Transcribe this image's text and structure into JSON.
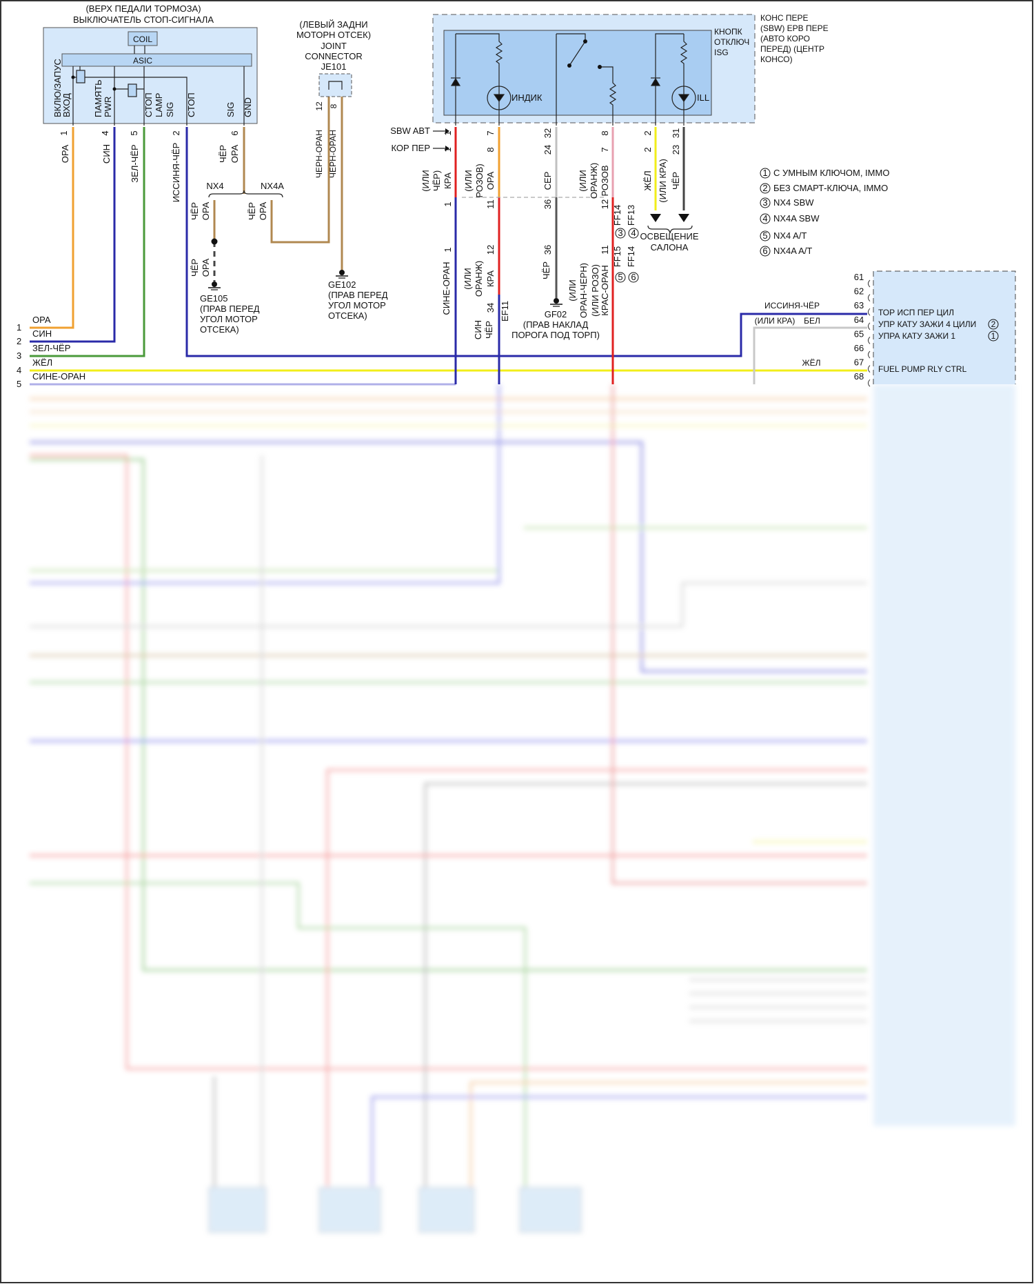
{
  "colors": {
    "ora": "#f0a030",
    "sin": "#2a2aa8",
    "zel": "#4a9a3a",
    "yel": "#f2ee1a",
    "red": "#e02020",
    "tan": "#b08850",
    "pink": "#e8a0b0",
    "gray": "#b0b0b0",
    "black": "#444444",
    "box": "#d6e8fa",
    "inner": "#a9cdf2"
  },
  "brake_switch": {
    "title": [
      "(ВЕРХ ПЕДАЛИ ТОРМОЗА)",
      "ВЫКЛЮЧАТЕЛЬ СТОП-СИГНАЛА"
    ],
    "coil": "COIL",
    "asic": "ASIC",
    "pin_labels": [
      "ВКЛЮ/ЗАПУС",
      "ВХОД",
      "ПАМЯТЬ",
      "PWR",
      "СТОП",
      "LAMP",
      "SIG",
      "СТОП",
      "SIG",
      "GND"
    ],
    "pin_numbers": [
      "1",
      "4",
      "5",
      "2",
      "6"
    ],
    "wires": [
      "ОРА",
      "СИН",
      "ЗЕЛ-ЧЁР",
      "ИССИНЯ-ЧЁР",
      "ЧЁР",
      "ОРА"
    ]
  },
  "joint": {
    "title": [
      "(ЛЕВЫЙ ЗАДНИ",
      "МОТОРН ОТСЕК)",
      "JOINT",
      "CONNECTOR",
      "JE101"
    ],
    "pins": [
      "12",
      "8"
    ],
    "wires": [
      "ЧЕРН-ОРАН",
      "ЧЕРН-ОРАН"
    ]
  },
  "nx": {
    "nx4": "NX4",
    "nx4a": "NX4A",
    "left_wire": [
      "ЧЁР",
      "ОРА"
    ],
    "right_wire": [
      "ЧЁР",
      "ОРА"
    ],
    "lower_wire": [
      "ЧЁР",
      "ОРА"
    ]
  },
  "grounds": {
    "ge105": [
      "GE105",
      "(ПРАВ ПЕРЕД",
      "УГОЛ МОТОР",
      "ОТСЕКА)"
    ],
    "ge102": [
      "GE102",
      "(ПРАВ ПЕРЕД",
      "УГОЛ МОТОР",
      "ОТСЕКА)"
    ],
    "gf02": [
      "GF02",
      "(ПРАВ НАКЛАД",
      "ПОРОГА ПОД ТОРП)"
    ]
  },
  "isg": {
    "indicator": "ИНДИК",
    "ill": "ILL",
    "button": [
      "КНОПК",
      "ОТКЛЮЧ",
      "ISG"
    ],
    "console": [
      "КОНС ПЕРЕ",
      "(SBW) EPB ПЕРЕ",
      "(АВТО КОРО",
      "ПЕРЕД) (ЦЕНТР",
      "КОНСО)"
    ],
    "sbw": "SBW ABT",
    "kor": "КОР ПЕР",
    "pins_top": [
      "1",
      "7",
      "32",
      "8",
      "2",
      "31"
    ],
    "pins_second": [
      "1",
      "8",
      "24",
      "7",
      "2",
      "23"
    ],
    "wires_top": [
      [
        "(ИЛИ",
        "ЧЁР)",
        "КРА"
      ],
      [
        "(ИЛИ",
        "РОЗОВ)",
        "ОРА"
      ],
      [
        "СЕР"
      ],
      [
        "(ИЛИ",
        "ОРАНЖ)",
        "РОЗОВ"
      ],
      [
        "ЖЁЛ"
      ],
      [
        "(ИЛИ КРА)",
        "ЧЁР"
      ]
    ],
    "pins_mid": [
      "1",
      "11",
      "36",
      "12"
    ],
    "ff_top": [
      "FF14",
      "FF13"
    ],
    "circ_top": [
      "3",
      "4"
    ],
    "lighting": [
      "ОСВЕЩЕНИЕ",
      "САЛОНА"
    ],
    "pins_low": [
      "1",
      "12",
      "36",
      "11"
    ],
    "ff_low": [
      "FF15",
      "FF14"
    ],
    "circ_low": [
      "5",
      "6"
    ],
    "wires_low": [
      [
        "СИНЕ-ОРАН"
      ],
      [
        "(ИЛИ",
        "ОРАНЖ)",
        "КРА"
      ],
      [
        "ЧЁР"
      ],
      [
        "(ИЛИ",
        "ОРАН-ЧЕРН)",
        "(ИЛИ РОЗО)",
        "КРАС-ОРАН"
      ]
    ],
    "ef11": {
      "pin": "34",
      "name": "EF11",
      "wire": [
        "СИН",
        "ЧЁР"
      ]
    }
  },
  "legend": [
    {
      "n": "1",
      "text": "С УМНЫМ КЛЮЧОМ, IMMO"
    },
    {
      "n": "2",
      "text": "БЕЗ СМАРТ-КЛЮЧА, IMMO"
    },
    {
      "n": "3",
      "text": "NX4 SBW"
    },
    {
      "n": "4",
      "text": "NX4A SBW"
    },
    {
      "n": "5",
      "text": "NX4 A/T"
    },
    {
      "n": "6",
      "text": "NX4A A/T"
    }
  ],
  "left_bus": {
    "numbers": [
      "1",
      "2",
      "3",
      "4",
      "5"
    ],
    "labels": [
      "ОРА",
      "СИН",
      "ЗЕЛ-ЧЁР",
      "ЖЁЛ",
      "СИНЕ-ОРАН"
    ]
  },
  "ecm": {
    "pins": [
      "61",
      "62",
      "63",
      "64",
      "65",
      "66",
      "67",
      "68"
    ],
    "signals": [
      "ТОР ИСП ПЕР ЦИЛ",
      "УПР КАТУ ЗАЖИ 4 ЦИЛИ",
      "УПРА КАТУ ЗАЖИ 1",
      "FUEL PUMP RLY CTRL"
    ],
    "signal_marks": [
      "2",
      "1"
    ],
    "wires": {
      "w63": "ИССИНЯ-ЧЁР",
      "w64_alt": "(ИЛИ КРА)",
      "w64": "БЕЛ",
      "w67": "ЖЁЛ"
    }
  }
}
